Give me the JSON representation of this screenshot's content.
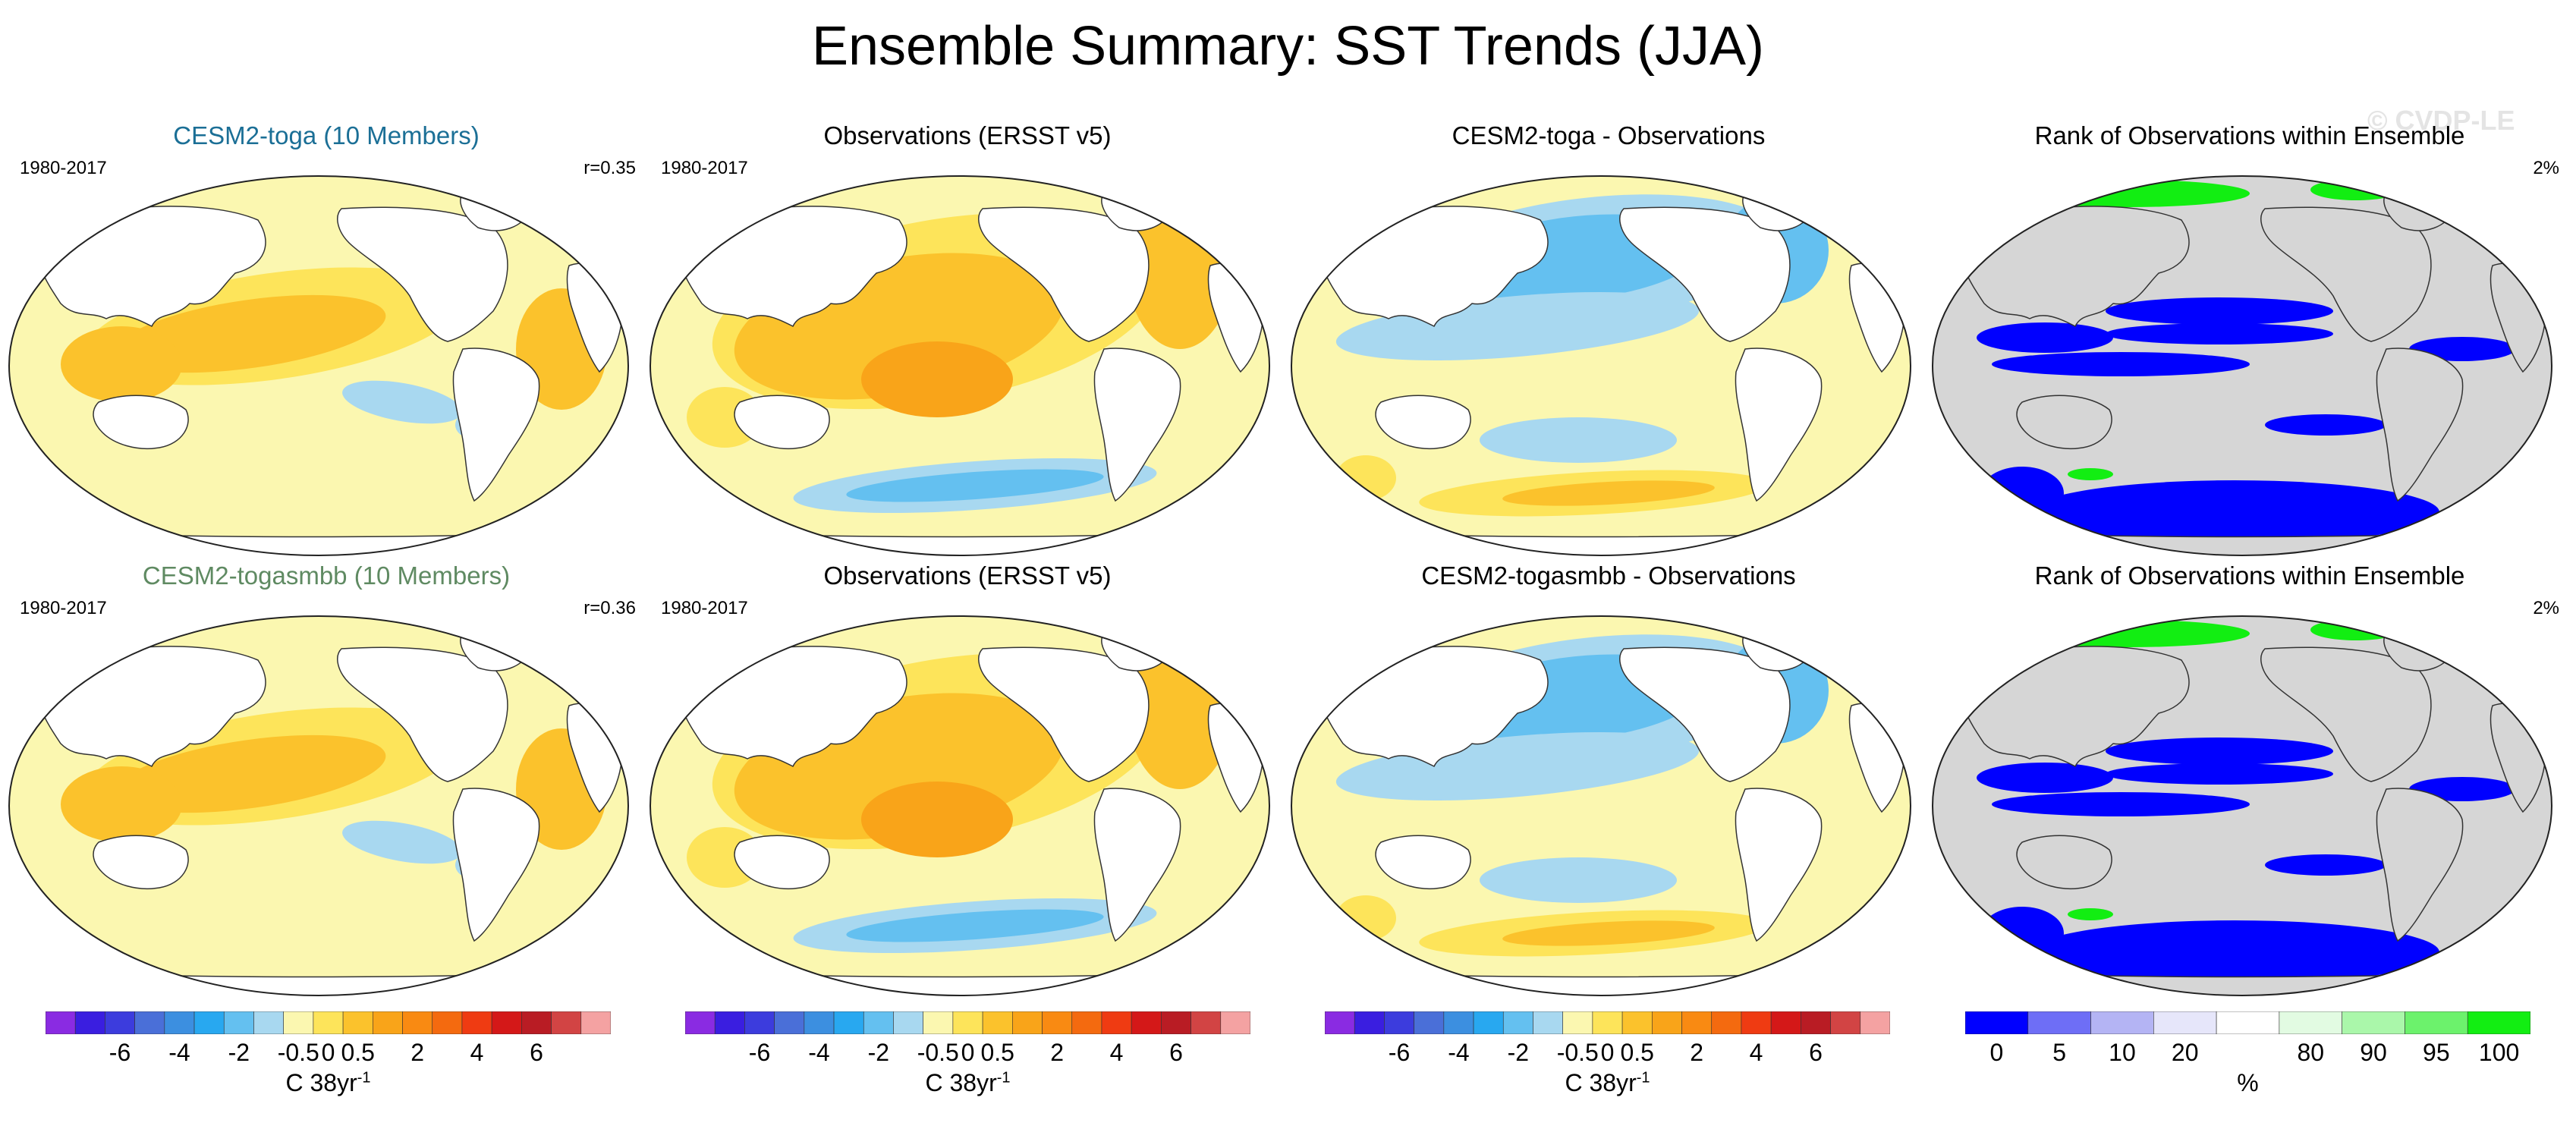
{
  "title": "Ensemble Summary: SST Trends (JJA)",
  "watermark": "© CVDP-LE",
  "rows": [
    {
      "panels": [
        {
          "title": "CESM2-toga (10 Members)",
          "left": "1980-2017",
          "right": "r=0.35",
          "kind": "model"
        },
        {
          "title": "Observations (ERSST v5)",
          "left": "1980-2017",
          "right": "",
          "kind": "obs"
        },
        {
          "title": "CESM2-toga - Observations",
          "left": "",
          "right": "",
          "kind": "diff"
        },
        {
          "title": "Rank of Observations within Ensemble",
          "left": "",
          "right": "2%",
          "kind": "rank"
        }
      ]
    },
    {
      "panels": [
        {
          "title": "CESM2-togasmbb (10 Members)",
          "left": "1980-2017",
          "right": "r=0.36",
          "kind": "model"
        },
        {
          "title": "Observations (ERSST v5)",
          "left": "1980-2017",
          "right": "",
          "kind": "obs"
        },
        {
          "title": "CESM2-togasmbb - Observations",
          "left": "",
          "right": "",
          "kind": "diff"
        },
        {
          "title": "Rank of Observations within Ensemble",
          "left": "",
          "right": "2%",
          "kind": "rank"
        }
      ]
    }
  ],
  "trend_colorbar": {
    "colors": [
      "#8a2be2",
      "#3a1ee0",
      "#3c3cdd",
      "#4a6fd8",
      "#3c8fe0",
      "#28a8f0",
      "#64c0f0",
      "#a8d8f0",
      "#fbf7b0",
      "#fde45a",
      "#fbc22c",
      "#f9a419",
      "#f98a12",
      "#f46a0f",
      "#ef3b12",
      "#d41818",
      "#b91c24",
      "#d24444",
      "#f4a2a2"
    ],
    "tick_labels": [
      "-6",
      "-4",
      "-2",
      "-0.5",
      "0",
      "0.5",
      "2",
      "4",
      "6"
    ],
    "unit": "C 38yr",
    "unit_sup": "-1"
  },
  "rank_colorbar": {
    "colors": [
      "#0000ff",
      "#6e6ef6",
      "#b4b4f4",
      "#e6e6fa",
      "#ffffff",
      "#e2fbe2",
      "#aaf7aa",
      "#6cf26c",
      "#12ee12"
    ],
    "tick_labels": [
      "0",
      "5",
      "10",
      "20",
      "80",
      "90",
      "95",
      "100"
    ],
    "unit": "%"
  },
  "colors": {
    "land": "#ffffff",
    "land_rank": "#d6d6d6",
    "ocean_light": "#fbf7b0",
    "warm1": "#fde45a",
    "warm2": "#fbc22c",
    "warm3": "#f9a419",
    "cool1": "#a8d8f0",
    "cool2": "#64c0f0",
    "cool3": "#28a8f0",
    "rank_low": "#0000ff",
    "rank_high": "#12ee12"
  }
}
